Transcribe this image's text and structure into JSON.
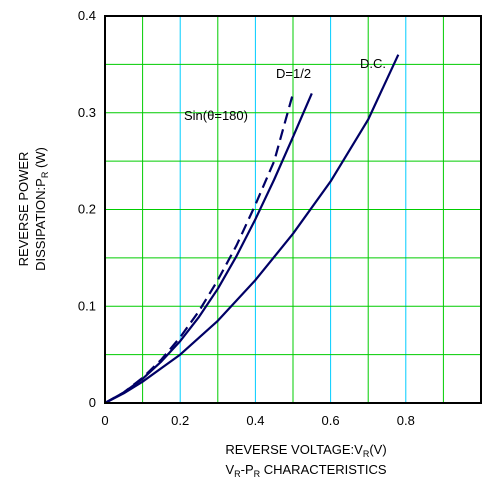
{
  "chart_data": {
    "type": "line",
    "xlim": [
      0,
      1.0
    ],
    "ylim": [
      0,
      0.4
    ],
    "x_ticks": [
      0,
      0.2,
      0.4,
      0.6,
      0.8
    ],
    "x_tick_labels": [
      "0",
      "0.2",
      "0.4",
      "0.6",
      "0.8"
    ],
    "y_ticks": [
      0,
      0.1,
      0.2,
      0.3,
      0.4
    ],
    "y_tick_labels": [
      "0",
      "0.1",
      "0.2",
      "0.3",
      "0.4"
    ],
    "x_grid_step": 0.1,
    "y_grid_step": 0.05,
    "grid": true,
    "grid_color": "#00cc00",
    "x_grid_accent_color": "#00ccff",
    "line_color": "#000066",
    "xlabel": {
      "main": "REVERSE VOLTAGE:V",
      "sub": "R",
      "unit": "(V)"
    },
    "ylabel": {
      "line1": "REVERSE POWER",
      "line2_main": "DISSIPATION:P",
      "line2_sub": "R",
      "line2_unit": " (W)"
    },
    "caption": {
      "a": "V",
      "a_sub": "R",
      "dash": "-P",
      "b_sub": "R",
      "rest": " CHARACTERISTICS"
    },
    "annotations": [
      {
        "text": "D.C."
      },
      {
        "text": "D=1/2"
      },
      {
        "text": "Sin(θ=180)"
      }
    ],
    "series": [
      {
        "name": "D.C.",
        "style": "solid",
        "x": [
          0,
          0.05,
          0.1,
          0.2,
          0.3,
          0.4,
          0.5,
          0.6,
          0.7,
          0.78
        ],
        "y": [
          0,
          0.01,
          0.022,
          0.05,
          0.085,
          0.127,
          0.175,
          0.229,
          0.293,
          0.36
        ]
      },
      {
        "name": "D=1/2",
        "style": "solid",
        "x": [
          0,
          0.05,
          0.1,
          0.15,
          0.2,
          0.25,
          0.3,
          0.35,
          0.4,
          0.45,
          0.5,
          0.55
        ],
        "y": [
          0,
          0.011,
          0.025,
          0.043,
          0.064,
          0.089,
          0.118,
          0.152,
          0.19,
          0.231,
          0.275,
          0.32
        ]
      },
      {
        "name": "Sin(θ=180)",
        "style": "dashed",
        "x": [
          0,
          0.05,
          0.1,
          0.15,
          0.2,
          0.25,
          0.3,
          0.35,
          0.4,
          0.45,
          0.5
        ],
        "y": [
          0,
          0.011,
          0.026,
          0.045,
          0.068,
          0.095,
          0.127,
          0.163,
          0.205,
          0.25,
          0.32
        ]
      }
    ]
  }
}
